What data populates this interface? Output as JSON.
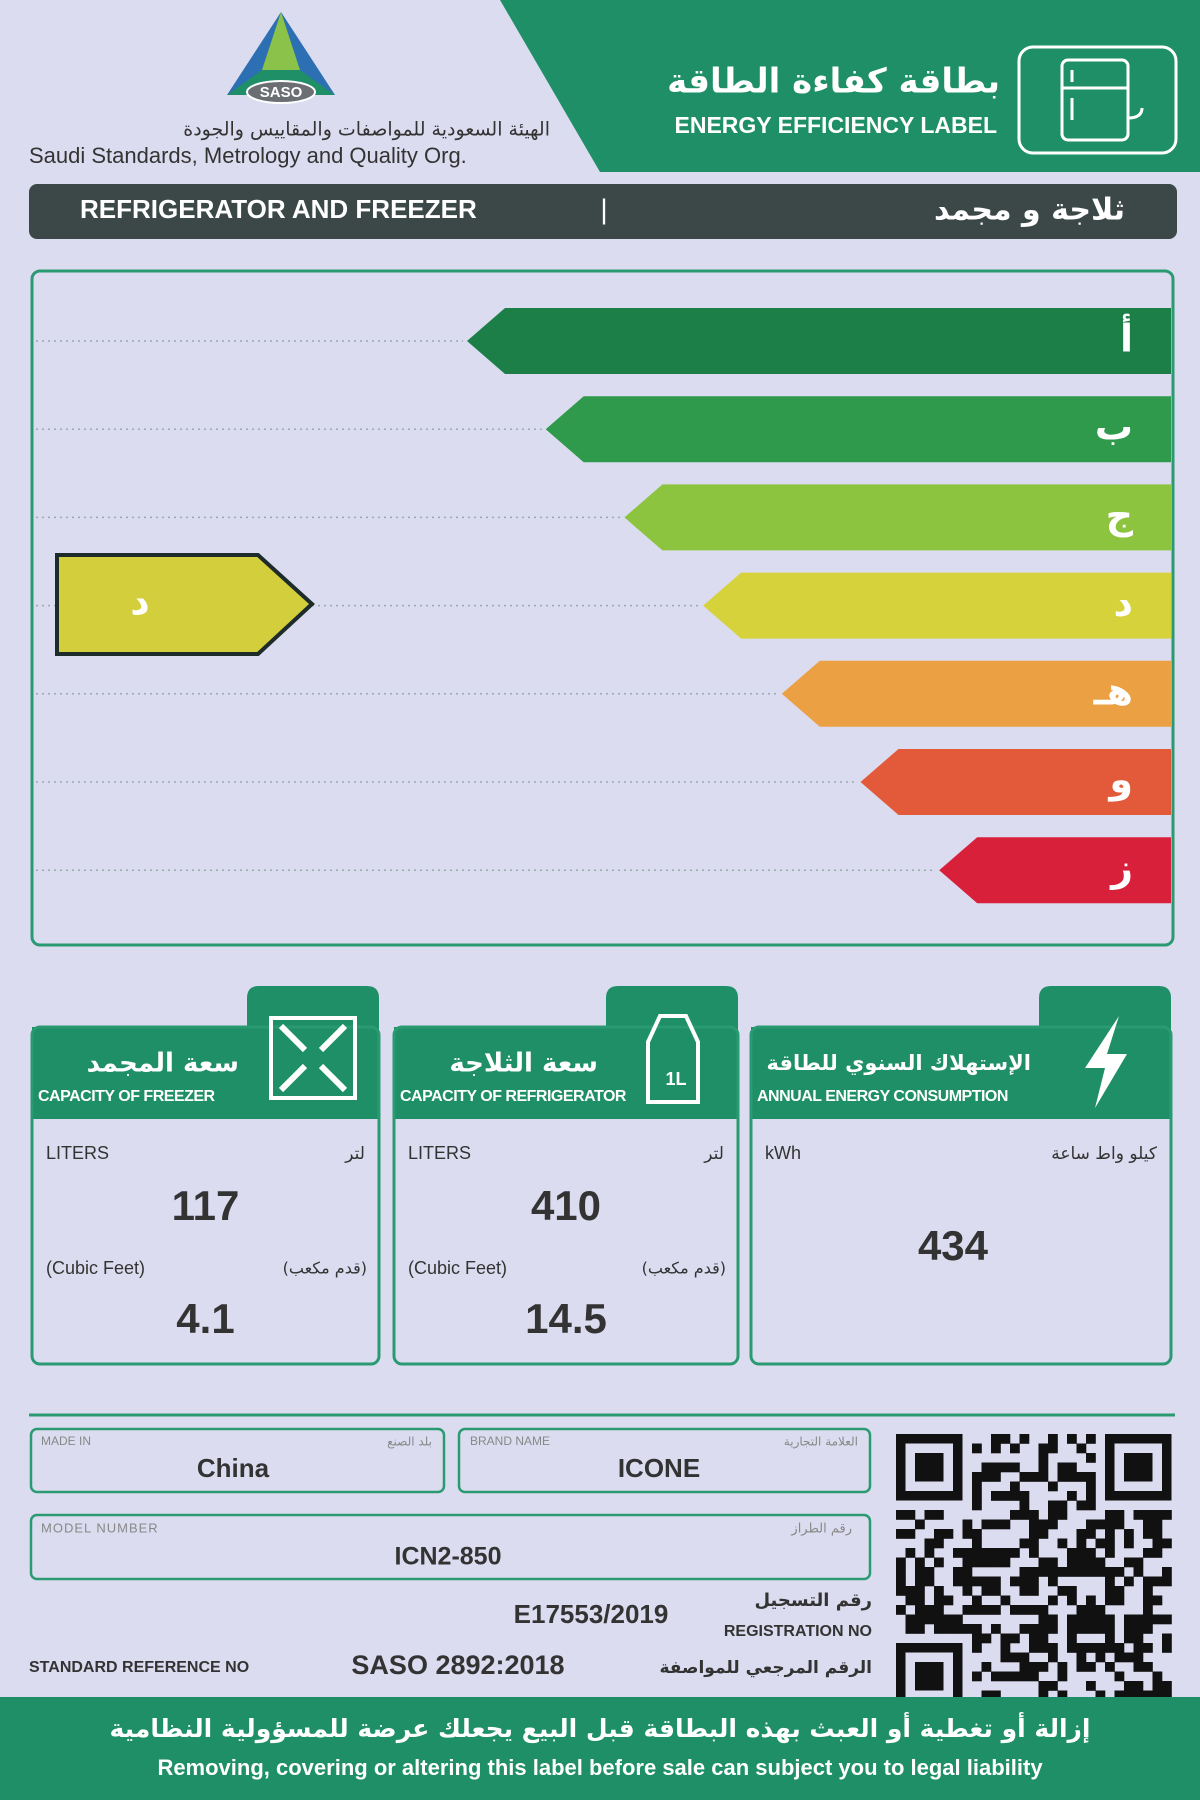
{
  "header": {
    "logo_text": "SASO",
    "org_arabic": "الهيئة السعودية للمواصفات والمقاييس والجودة",
    "org_english": "Saudi Standards, Metrology and Quality Org.",
    "title_arabic": "بطاقة كفاءة الطاقة",
    "title_english": "ENERGY EFFICIENCY LABEL"
  },
  "product_bar": {
    "english": "REFRIGERATOR AND FREEZER",
    "separator": "|",
    "arabic": "ثلاجة و مجمد"
  },
  "rating": {
    "classes": [
      {
        "label": "أ",
        "color": "#1b7f47"
      },
      {
        "label": "ب",
        "color": "#2f9a4b"
      },
      {
        "label": "ج",
        "color": "#8dc43f"
      },
      {
        "label": "د",
        "color": "#d5d23b"
      },
      {
        "label": "هـ",
        "color": "#eba043"
      },
      {
        "label": "و",
        "color": "#e35a3a"
      },
      {
        "label": "ز",
        "color": "#d8203b"
      }
    ],
    "rated": {
      "label": "د",
      "color": "#d3ce3b"
    }
  },
  "panels": [
    {
      "title_arabic": "سعة المجمد",
      "title_english": "CAPACITY OF FREEZER",
      "unit_english": "LITERS",
      "unit_arabic": "لتر",
      "value": 117,
      "secondary_unit_english": "(Cubic Feet)",
      "secondary_unit_arabic": "(قدم مكعب)",
      "secondary_value": 4.1
    },
    {
      "title_arabic": "سعة الثلاجة",
      "title_english": "CAPACITY OF REFRIGERATOR",
      "icon_text": "1L",
      "unit_english": "LITERS",
      "unit_arabic": "لتر",
      "value": 410,
      "secondary_unit_english": "(Cubic Feet)",
      "secondary_unit_arabic": "(قدم مكعب)",
      "secondary_value": 14.5
    },
    {
      "title_arabic": "الإستهلاك السنوي للطاقة",
      "title_english": "ANNUAL ENERGY CONSUMPTION",
      "unit_english": "kWh",
      "unit_arabic": "كيلو واط ساعة",
      "value": 434
    }
  ],
  "details": {
    "made_in": {
      "label_english": "MADE IN",
      "label_arabic": "بلد الصنع",
      "value": "China"
    },
    "brand": {
      "label_english": "BRAND NAME",
      "label_arabic": "العلامة التجارية",
      "value": "ICONE"
    },
    "model": {
      "label_english": "MODEL NUMBER",
      "label_arabic": "رقم الطراز",
      "value": "ICN2-850"
    },
    "registration": {
      "label_arabic": "رقم التسجيل",
      "label_english": "REGISTRATION NO",
      "value": "E17553/2019"
    },
    "standard": {
      "label_english": "STANDARD REFERENCE NO",
      "value": "SASO 2892:2018",
      "label_arabic": "الرقم المرجعي للمواصفة"
    }
  },
  "footer": {
    "arabic": "إزالة أو تغطية أو العبث بهذه البطاقة قبل البيع يجعلك عرضة للمسؤولية النظامية",
    "english": "Removing, covering or altering this label before sale can subject you to legal liability"
  }
}
